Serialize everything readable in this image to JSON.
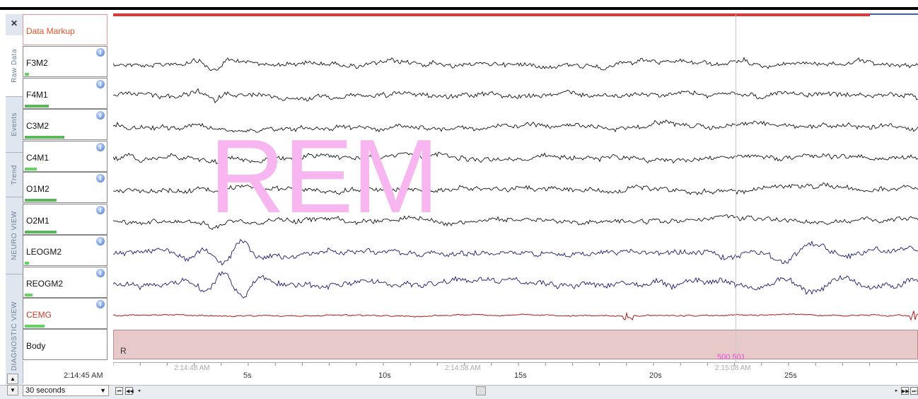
{
  "tabs": [
    {
      "label": "Raw Data",
      "active": true
    },
    {
      "label": "Events",
      "active": false
    },
    {
      "label": "Trend",
      "active": false
    },
    {
      "label": "NEURO VIEW",
      "active": false
    },
    {
      "label": "DIAGNOSTIC VIEW",
      "active": false
    }
  ],
  "markup_label": "Data Markup",
  "channels": [
    {
      "name": "F3M2",
      "color": "#111111",
      "level": 0.05
    },
    {
      "name": "F4M1",
      "color": "#111111",
      "level": 0.3
    },
    {
      "name": "C3M2",
      "color": "#111111",
      "level": 0.5
    },
    {
      "name": "C4M1",
      "color": "#111111",
      "level": 0.15
    },
    {
      "name": "O1M2",
      "color": "#111111",
      "level": 0.4
    },
    {
      "name": "O2M1",
      "color": "#111111",
      "level": 0.4
    },
    {
      "name": "LEOGM2",
      "color": "#1a1a6e",
      "level": 0.05
    },
    {
      "name": "REOGM2",
      "color": "#1a1a6e",
      "level": 0.1
    },
    {
      "name": "CEMG",
      "color": "#b01818",
      "level": 0.25
    }
  ],
  "body_label": "Body",
  "info_glyph": "i",
  "stage_label": "REM",
  "stage_code": "R",
  "epochs": "500 501",
  "left_clock": "2:14:45 AM",
  "window_select": "30 seconds",
  "time_ticks": [
    "5s",
    "10s",
    "15s",
    "20s",
    "25s"
  ],
  "clock_ticks": [
    "2:14:48 AM",
    "2:14:58 AM",
    "2:15:08 AM"
  ],
  "nav": {
    "first": "⏮",
    "prev": "◀◀",
    "scroll_left": "◂",
    "scroll_right": "▸",
    "next": "▶▶",
    "last": "⏭"
  },
  "close_glyph": "✕",
  "colors": {
    "accent_red": "#e43434",
    "stage_fill": "#e8c9c9",
    "rem_text": "#f7b6ef",
    "epoch_text": "#e052d4"
  }
}
